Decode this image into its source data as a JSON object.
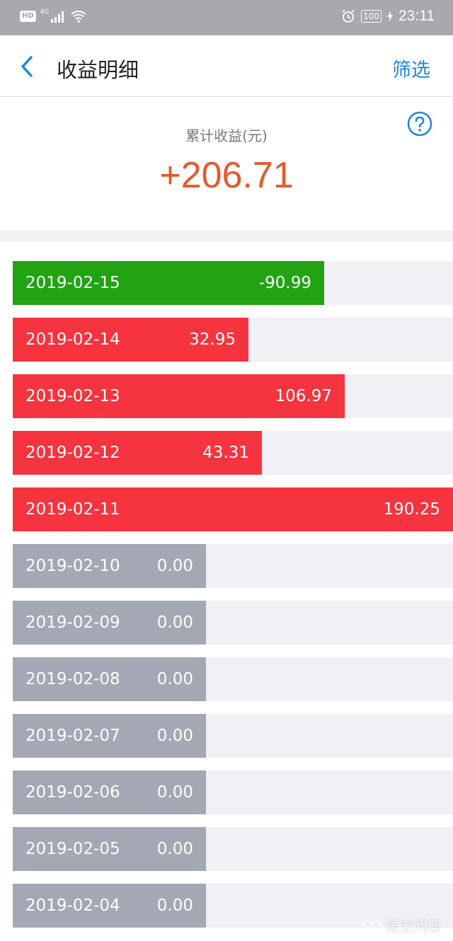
{
  "status_bar": {
    "hd_label": "HD",
    "network_label": "4G",
    "battery": "100",
    "time": "23:11"
  },
  "header": {
    "title": "收益明细",
    "filter_label": "筛选",
    "back_icon": "chevron-left-icon"
  },
  "summary": {
    "label": "累计收益(元)",
    "value": "+206.71",
    "help_icon": "question-circle-icon"
  },
  "colors": {
    "gain": "#f5343f",
    "loss": "#22a313",
    "zero": "#a4a8b4",
    "track": "#f0f0f5",
    "accent": "#1e88d8",
    "total": "#e45a2b"
  },
  "rows": [
    {
      "date": "2019-02-15",
      "value": "-90.99",
      "amount": -90.99
    },
    {
      "date": "2019-02-14",
      "value": "32.95",
      "amount": 32.95
    },
    {
      "date": "2019-02-13",
      "value": "106.97",
      "amount": 106.97
    },
    {
      "date": "2019-02-12",
      "value": "43.31",
      "amount": 43.31
    },
    {
      "date": "2019-02-11",
      "value": "190.25",
      "amount": 190.25
    },
    {
      "date": "2019-02-10",
      "value": "0.00",
      "amount": 0
    },
    {
      "date": "2019-02-09",
      "value": "0.00",
      "amount": 0
    },
    {
      "date": "2019-02-08",
      "value": "0.00",
      "amount": 0
    },
    {
      "date": "2019-02-07",
      "value": "0.00",
      "amount": 0
    },
    {
      "date": "2019-02-06",
      "value": "0.00",
      "amount": 0
    },
    {
      "date": "2019-02-05",
      "value": "0.00",
      "amount": 0
    },
    {
      "date": "2019-02-04",
      "value": "0.00",
      "amount": 0
    }
  ],
  "watermark": "悟空问答"
}
